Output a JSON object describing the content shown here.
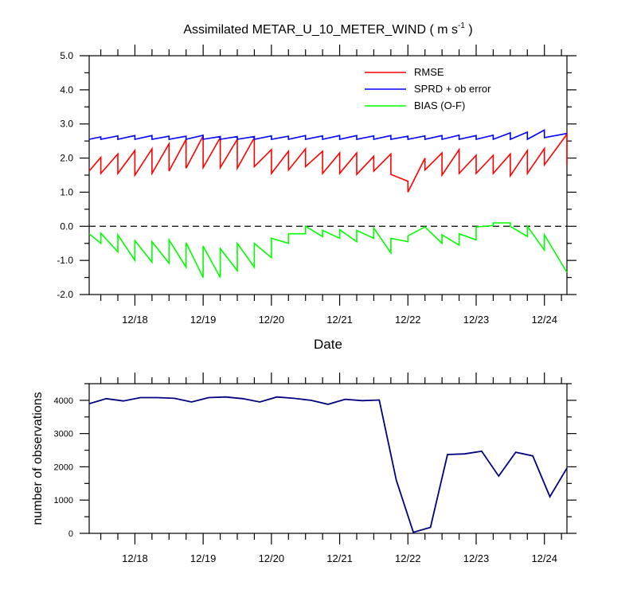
{
  "title": {
    "main": "Assimilated METAR_U_10_METER_WIND ( m s",
    "unit_exp": "-1",
    "suffix": " )"
  },
  "x_axis": {
    "label": "Date",
    "tick_labels": [
      "12/18",
      "12/19",
      "12/20",
      "12/21",
      "12/22",
      "12/23",
      "12/24"
    ],
    "range_days": [
      17.33,
      24.33
    ]
  },
  "chart_data": [
    {
      "type": "line",
      "title": "Assimilated METAR_U_10_METER_WIND ( m s-1 )",
      "xlabel": "Date",
      "ylabel": "",
      "ylim": [
        -2.0,
        5.0
      ],
      "yticks": [
        "5.0",
        "4.0",
        "3.0",
        "2.0",
        "1.0",
        "0.0",
        "-1.0",
        "-2.0"
      ],
      "reference_line": {
        "y": 0.0,
        "style": "dashed",
        "color": "#000000"
      },
      "legend": {
        "placement": "top-right",
        "entries": [
          "RMSE",
          "SPRD + ob error",
          "BIAS (O-F)"
        ]
      },
      "series": [
        {
          "name": "RMSE",
          "color": "#ff0000",
          "points": [
            [
              17.33,
              1.62
            ],
            [
              17.5,
              2.02
            ],
            [
              17.5,
              1.55
            ],
            [
              17.75,
              2.12
            ],
            [
              17.75,
              1.55
            ],
            [
              18.0,
              2.22
            ],
            [
              18.0,
              1.5
            ],
            [
              18.25,
              2.27
            ],
            [
              18.25,
              1.55
            ],
            [
              18.5,
              2.42
            ],
            [
              18.5,
              1.62
            ],
            [
              18.75,
              2.55
            ],
            [
              18.75,
              1.7
            ],
            [
              19.0,
              2.65
            ],
            [
              19.0,
              1.72
            ],
            [
              19.25,
              2.6
            ],
            [
              19.25,
              1.72
            ],
            [
              19.5,
              2.55
            ],
            [
              19.5,
              1.7
            ],
            [
              19.75,
              2.6
            ],
            [
              19.75,
              1.75
            ],
            [
              20.0,
              2.25
            ],
            [
              20.0,
              1.55
            ],
            [
              20.25,
              2.2
            ],
            [
              20.25,
              1.65
            ],
            [
              20.5,
              2.27
            ],
            [
              20.5,
              1.75
            ],
            [
              20.75,
              2.2
            ],
            [
              20.75,
              1.55
            ],
            [
              21.0,
              2.15
            ],
            [
              21.0,
              1.55
            ],
            [
              21.25,
              2.15
            ],
            [
              21.25,
              1.52
            ],
            [
              21.5,
              2.05
            ],
            [
              21.5,
              1.62
            ],
            [
              21.75,
              2.12
            ],
            [
              21.75,
              1.52
            ],
            [
              22.0,
              1.32
            ],
            [
              22.0,
              1.0
            ],
            [
              22.25,
              2.0
            ],
            [
              22.25,
              1.65
            ],
            [
              22.5,
              2.15
            ],
            [
              22.5,
              1.5
            ],
            [
              22.75,
              2.25
            ],
            [
              22.75,
              1.55
            ],
            [
              23.0,
              2.08
            ],
            [
              23.0,
              1.55
            ],
            [
              23.25,
              2.08
            ],
            [
              23.25,
              1.55
            ],
            [
              23.5,
              2.12
            ],
            [
              23.5,
              1.48
            ],
            [
              23.75,
              2.22
            ],
            [
              23.75,
              1.55
            ],
            [
              24.0,
              2.28
            ],
            [
              24.0,
              1.8
            ],
            [
              24.33,
              2.7
            ],
            [
              24.33,
              1.8
            ]
          ]
        },
        {
          "name": "SPRD + ob error",
          "color": "#0000ff",
          "points": [
            [
              17.33,
              2.55
            ],
            [
              17.5,
              2.62
            ],
            [
              17.5,
              2.55
            ],
            [
              17.75,
              2.65
            ],
            [
              17.75,
              2.55
            ],
            [
              18.0,
              2.66
            ],
            [
              18.0,
              2.55
            ],
            [
              18.25,
              2.66
            ],
            [
              18.25,
              2.55
            ],
            [
              18.5,
              2.64
            ],
            [
              18.5,
              2.55
            ],
            [
              18.75,
              2.64
            ],
            [
              18.75,
              2.55
            ],
            [
              19.0,
              2.67
            ],
            [
              19.0,
              2.55
            ],
            [
              19.25,
              2.63
            ],
            [
              19.25,
              2.55
            ],
            [
              19.5,
              2.63
            ],
            [
              19.5,
              2.55
            ],
            [
              19.75,
              2.63
            ],
            [
              19.75,
              2.55
            ],
            [
              20.0,
              2.65
            ],
            [
              20.0,
              2.55
            ],
            [
              20.25,
              2.64
            ],
            [
              20.25,
              2.55
            ],
            [
              20.5,
              2.66
            ],
            [
              20.5,
              2.55
            ],
            [
              20.75,
              2.65
            ],
            [
              20.75,
              2.55
            ],
            [
              21.0,
              2.66
            ],
            [
              21.0,
              2.55
            ],
            [
              21.25,
              2.66
            ],
            [
              21.25,
              2.55
            ],
            [
              21.5,
              2.65
            ],
            [
              21.5,
              2.55
            ],
            [
              21.75,
              2.66
            ],
            [
              21.75,
              2.55
            ],
            [
              22.0,
              2.64
            ],
            [
              22.0,
              2.55
            ],
            [
              22.25,
              2.65
            ],
            [
              22.25,
              2.55
            ],
            [
              22.5,
              2.66
            ],
            [
              22.5,
              2.55
            ],
            [
              22.75,
              2.67
            ],
            [
              22.75,
              2.55
            ],
            [
              23.0,
              2.66
            ],
            [
              23.0,
              2.55
            ],
            [
              23.25,
              2.67
            ],
            [
              23.25,
              2.55
            ],
            [
              23.5,
              2.74
            ],
            [
              23.5,
              2.55
            ],
            [
              23.75,
              2.76
            ],
            [
              23.75,
              2.55
            ],
            [
              24.0,
              2.82
            ],
            [
              24.0,
              2.6
            ],
            [
              24.33,
              2.72
            ]
          ]
        },
        {
          "name": "BIAS (O-F)",
          "color": "#00ff00",
          "points": [
            [
              17.33,
              -0.22
            ],
            [
              17.5,
              -0.5
            ],
            [
              17.5,
              -0.2
            ],
            [
              17.75,
              -0.75
            ],
            [
              17.75,
              -0.25
            ],
            [
              18.0,
              -1.0
            ],
            [
              18.0,
              -0.42
            ],
            [
              18.25,
              -1.05
            ],
            [
              18.25,
              -0.45
            ],
            [
              18.5,
              -1.08
            ],
            [
              18.5,
              -0.4
            ],
            [
              18.75,
              -1.2
            ],
            [
              18.75,
              -0.48
            ],
            [
              19.0,
              -1.5
            ],
            [
              19.0,
              -0.58
            ],
            [
              19.25,
              -1.5
            ],
            [
              19.25,
              -0.65
            ],
            [
              19.5,
              -1.3
            ],
            [
              19.5,
              -0.5
            ],
            [
              19.75,
              -1.2
            ],
            [
              19.75,
              -0.5
            ],
            [
              20.0,
              -0.92
            ],
            [
              20.0,
              -0.35
            ],
            [
              20.25,
              -0.5
            ],
            [
              20.25,
              -0.22
            ],
            [
              20.5,
              -0.22
            ],
            [
              20.5,
              0.0
            ],
            [
              20.75,
              -0.3
            ],
            [
              20.75,
              -0.12
            ],
            [
              21.0,
              -0.35
            ],
            [
              21.0,
              -0.1
            ],
            [
              21.25,
              -0.45
            ],
            [
              21.25,
              -0.12
            ],
            [
              21.5,
              -0.35
            ],
            [
              21.5,
              -0.05
            ],
            [
              21.75,
              -0.78
            ],
            [
              21.75,
              -0.35
            ],
            [
              22.0,
              -0.45
            ],
            [
              22.0,
              -0.28
            ],
            [
              22.25,
              -0.02
            ],
            [
              22.5,
              -0.5
            ],
            [
              22.5,
              -0.25
            ],
            [
              22.75,
              -0.55
            ],
            [
              22.75,
              -0.22
            ],
            [
              23.0,
              -0.4
            ],
            [
              23.0,
              -0.02
            ],
            [
              23.25,
              0.02
            ],
            [
              23.25,
              0.1
            ],
            [
              23.5,
              0.1
            ],
            [
              23.5,
              0.0
            ],
            [
              23.75,
              -0.3
            ],
            [
              23.75,
              0.0
            ],
            [
              24.0,
              -0.7
            ],
            [
              24.0,
              -0.25
            ],
            [
              24.33,
              -1.35
            ]
          ]
        }
      ]
    },
    {
      "type": "line",
      "title": "",
      "xlabel": "",
      "ylabel": "number of observations",
      "ylim": [
        0,
        4500
      ],
      "yticks": [
        "4000",
        "3000",
        "2000",
        "1000",
        "0"
      ],
      "series": [
        {
          "name": "number of observations",
          "color": "#000080",
          "points": [
            [
              17.33,
              3900
            ],
            [
              17.58,
              4050
            ],
            [
              17.83,
              3980
            ],
            [
              18.08,
              4080
            ],
            [
              18.33,
              4080
            ],
            [
              18.58,
              4060
            ],
            [
              18.83,
              3950
            ],
            [
              19.08,
              4080
            ],
            [
              19.33,
              4100
            ],
            [
              19.58,
              4050
            ],
            [
              19.83,
              3950
            ],
            [
              20.08,
              4100
            ],
            [
              20.33,
              4060
            ],
            [
              20.58,
              4000
            ],
            [
              20.83,
              3880
            ],
            [
              21.08,
              4030
            ],
            [
              21.33,
              3990
            ],
            [
              21.58,
              4010
            ],
            [
              21.83,
              1600
            ],
            [
              22.08,
              30
            ],
            [
              22.33,
              180
            ],
            [
              22.58,
              2370
            ],
            [
              22.83,
              2390
            ],
            [
              23.08,
              2470
            ],
            [
              23.33,
              1720
            ],
            [
              23.58,
              2440
            ],
            [
              23.83,
              2330
            ],
            [
              24.08,
              1100
            ],
            [
              24.33,
              1960
            ]
          ]
        }
      ]
    }
  ]
}
